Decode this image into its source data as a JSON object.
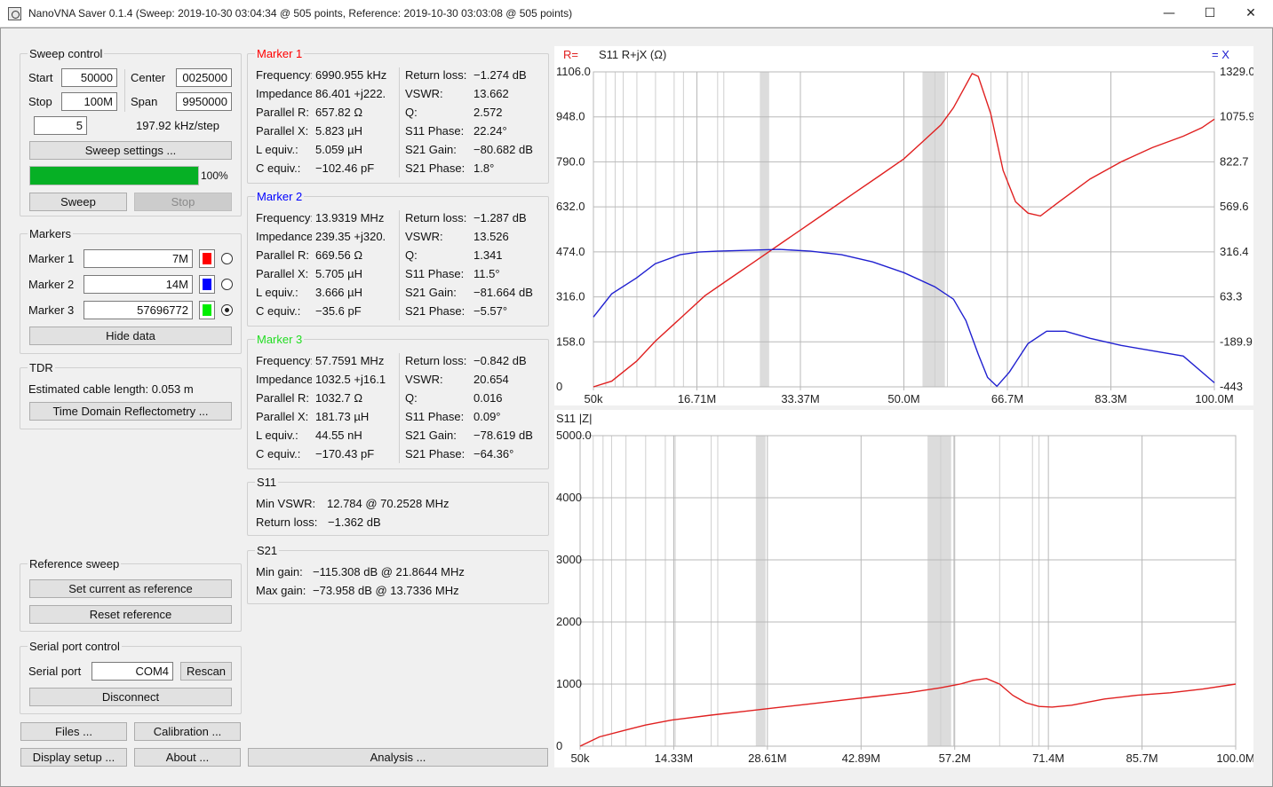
{
  "window": {
    "title": "NanoVNA Saver 0.1.4 (Sweep: 2019-10-30 03:04:34 @ 505 points, Reference: 2019-10-30 03:03:08 @ 505 points)",
    "minimize": "—",
    "maximize": "☐",
    "close": "✕"
  },
  "sweep": {
    "title": "Sweep control",
    "start_label": "Start",
    "start_value": "50000",
    "stop_label": "Stop",
    "stop_value": "100M",
    "center_label": "Center",
    "center_value": "0025000",
    "span_label": "Span",
    "span_value": "9950000",
    "segments": "5",
    "step_text": "197.92 kHz/step",
    "settings_button": "Sweep settings ...",
    "progress_text": "100%",
    "progress": 1.0,
    "sweep_button": "Sweep",
    "stop_button": "Stop"
  },
  "markers_panel": {
    "title": "Markers",
    "items": [
      {
        "label": "Marker 1",
        "value": "7M",
        "color": "#ff0000"
      },
      {
        "label": "Marker 2",
        "value": "14M",
        "color": "#0000ff"
      },
      {
        "label": "Marker 3",
        "value": "57696772",
        "color": "#00ee00"
      }
    ],
    "selected": 3,
    "hide_button": "Hide data"
  },
  "tdr": {
    "title": "TDR",
    "text": "Estimated cable length: 0.053 m",
    "button": "Time Domain Reflectometry ..."
  },
  "reference": {
    "title": "Reference sweep",
    "set_button": "Set current as reference",
    "reset_button": "Reset reference"
  },
  "serial": {
    "title": "Serial port control",
    "label": "Serial port",
    "value": "COM4",
    "rescan_button": "Rescan",
    "disconnect_button": "Disconnect"
  },
  "bottom_buttons": {
    "files": "Files ...",
    "calibration": "Calibration ...",
    "display": "Display setup ...",
    "about": "About ...",
    "analysis": "Analysis ..."
  },
  "marker_data": [
    {
      "title": "Marker 1",
      "color": "#ff0000",
      "left": [
        [
          "Frequency:",
          "6990.955 kHz"
        ],
        [
          "Impedance:",
          "86.401 +j222."
        ],
        [
          "Parallel R:",
          "657.82 Ω"
        ],
        [
          "Parallel X:",
          "5.823 µH"
        ],
        [
          "L equiv.:",
          "5.059 µH"
        ],
        [
          "C equiv.:",
          "−102.46 pF"
        ]
      ],
      "right": [
        [
          "Return loss:",
          "−1.274 dB"
        ],
        [
          "VSWR:",
          "13.662"
        ],
        [
          "Q:",
          "2.572"
        ],
        [
          "S11 Phase:",
          "22.24°"
        ],
        [
          "S21 Gain:",
          "−80.682 dB"
        ],
        [
          "S21 Phase:",
          "1.8°"
        ]
      ]
    },
    {
      "title": "Marker 2",
      "color": "#0000ff",
      "left": [
        [
          "Frequency:",
          "13.9319 MHz"
        ],
        [
          "Impedance:",
          "239.35 +j320."
        ],
        [
          "Parallel R:",
          "669.56 Ω"
        ],
        [
          "Parallel X:",
          "5.705 µH"
        ],
        [
          "L equiv.:",
          "3.666 µH"
        ],
        [
          "C equiv.:",
          "−35.6 pF"
        ]
      ],
      "right": [
        [
          "Return loss:",
          "−1.287 dB"
        ],
        [
          "VSWR:",
          "13.526"
        ],
        [
          "Q:",
          "1.341"
        ],
        [
          "S11 Phase:",
          "11.5°"
        ],
        [
          "S21 Gain:",
          "−81.664 dB"
        ],
        [
          "S21 Phase:",
          "−5.57°"
        ]
      ]
    },
    {
      "title": "Marker 3",
      "color": "#22dd22",
      "left": [
        [
          "Frequency:",
          "57.7591 MHz"
        ],
        [
          "Impedance:",
          "1032.5 +j16.1"
        ],
        [
          "Parallel R:",
          "1032.7 Ω"
        ],
        [
          "Parallel X:",
          "181.73 µH"
        ],
        [
          "L equiv.:",
          "44.55 nH"
        ],
        [
          "C equiv.:",
          "−170.43 pF"
        ]
      ],
      "right": [
        [
          "Return loss:",
          "−0.842 dB"
        ],
        [
          "VSWR:",
          "20.654"
        ],
        [
          "Q:",
          "0.016"
        ],
        [
          "S11 Phase:",
          "0.09°"
        ],
        [
          "S21 Gain:",
          "−78.619 dB"
        ],
        [
          "S21 Phase:",
          "−64.36°"
        ]
      ]
    }
  ],
  "s11_summary": {
    "title": "S11",
    "min_vswr_label": "Min VSWR:",
    "min_vswr_value": "12.784 @ 70.2528 MHz",
    "rl_label": "Return loss:",
    "rl_value": "−1.362 dB"
  },
  "s21_summary": {
    "title": "S21",
    "min_gain_label": "Min gain:",
    "min_gain_value": "−115.308 dB @ 21.8644 MHz",
    "max_gain_label": "Max gain:",
    "max_gain_value": "−73.958 dB @ 13.7336 MHz"
  },
  "chart_data": [
    {
      "type": "line",
      "title": "S11 R+jX (Ω)",
      "legend_left": "R=",
      "legend_right": "= X",
      "x_ticks": [
        "50k",
        "16.71M",
        "33.37M",
        "50.0M",
        "66.7M",
        "83.3M",
        "100.0M"
      ],
      "y_left_ticks": [
        "1106.0",
        "948.0",
        "790.0",
        "632.0",
        "474.0",
        "316.0",
        "158.0",
        "0"
      ],
      "y_right_ticks": [
        "1329.0",
        "1075.9",
        "822.7",
        "569.6",
        "316.4",
        "63.3",
        "-189.9",
        "-443"
      ],
      "xlim_mhz": [
        0.05,
        100
      ],
      "ylim_left": [
        0,
        1106
      ],
      "ylim_right": [
        -443,
        1329
      ],
      "series": [
        {
          "name": "R",
          "color": "#e02020",
          "axis": "left",
          "x": [
            0.05,
            3,
            7,
            10,
            14,
            18,
            22,
            26,
            30,
            34,
            38,
            42,
            46,
            50,
            53,
            56,
            58,
            60,
            61,
            62,
            64,
            66,
            68,
            70,
            72,
            75,
            80,
            85,
            90,
            95,
            98,
            100
          ],
          "values": [
            0,
            20,
            90,
            160,
            240,
            320,
            380,
            440,
            500,
            560,
            620,
            680,
            740,
            800,
            860,
            920,
            980,
            1060,
            1100,
            1090,
            960,
            760,
            650,
            610,
            600,
            650,
            730,
            790,
            840,
            880,
            910,
            940
          ]
        },
        {
          "name": "X",
          "color": "#2020d0",
          "axis": "right",
          "x": [
            0.05,
            3,
            7,
            10,
            14,
            17,
            20,
            25,
            30,
            35,
            40,
            45,
            50,
            55,
            58,
            60,
            62,
            63.5,
            65,
            67,
            70,
            73,
            76,
            80,
            85,
            90,
            95,
            100
          ],
          "values": [
            -50,
            80,
            170,
            250,
            300,
            315,
            320,
            325,
            330,
            320,
            300,
            260,
            200,
            120,
            50,
            -70,
            -260,
            -390,
            -440,
            -360,
            -200,
            -130,
            -130,
            -170,
            -210,
            -240,
            -270,
            -420
          ]
        }
      ]
    },
    {
      "type": "line",
      "title": "S11 |Z|",
      "x_ticks": [
        "50k",
        "14.33M",
        "28.61M",
        "42.89M",
        "57.2M",
        "71.4M",
        "85.7M",
        "100.0M"
      ],
      "y_ticks": [
        "5000.0",
        "4000",
        "3000",
        "2000",
        "1000",
        "0"
      ],
      "xlim_mhz": [
        0.05,
        100
      ],
      "ylim": [
        0,
        5000
      ],
      "series": [
        {
          "name": "|Z|",
          "color": "#e02020",
          "x": [
            0.05,
            3,
            7,
            10,
            14,
            20,
            25,
            30,
            35,
            40,
            45,
            50,
            55,
            58,
            60,
            62,
            64,
            66,
            68,
            70,
            72,
            75,
            80,
            85,
            90,
            95,
            100
          ],
          "values": [
            0,
            150,
            260,
            340,
            420,
            500,
            560,
            620,
            680,
            740,
            800,
            860,
            940,
            1000,
            1060,
            1090,
            1000,
            820,
            700,
            640,
            630,
            660,
            760,
            820,
            860,
            920,
            1000
          ]
        }
      ]
    }
  ]
}
